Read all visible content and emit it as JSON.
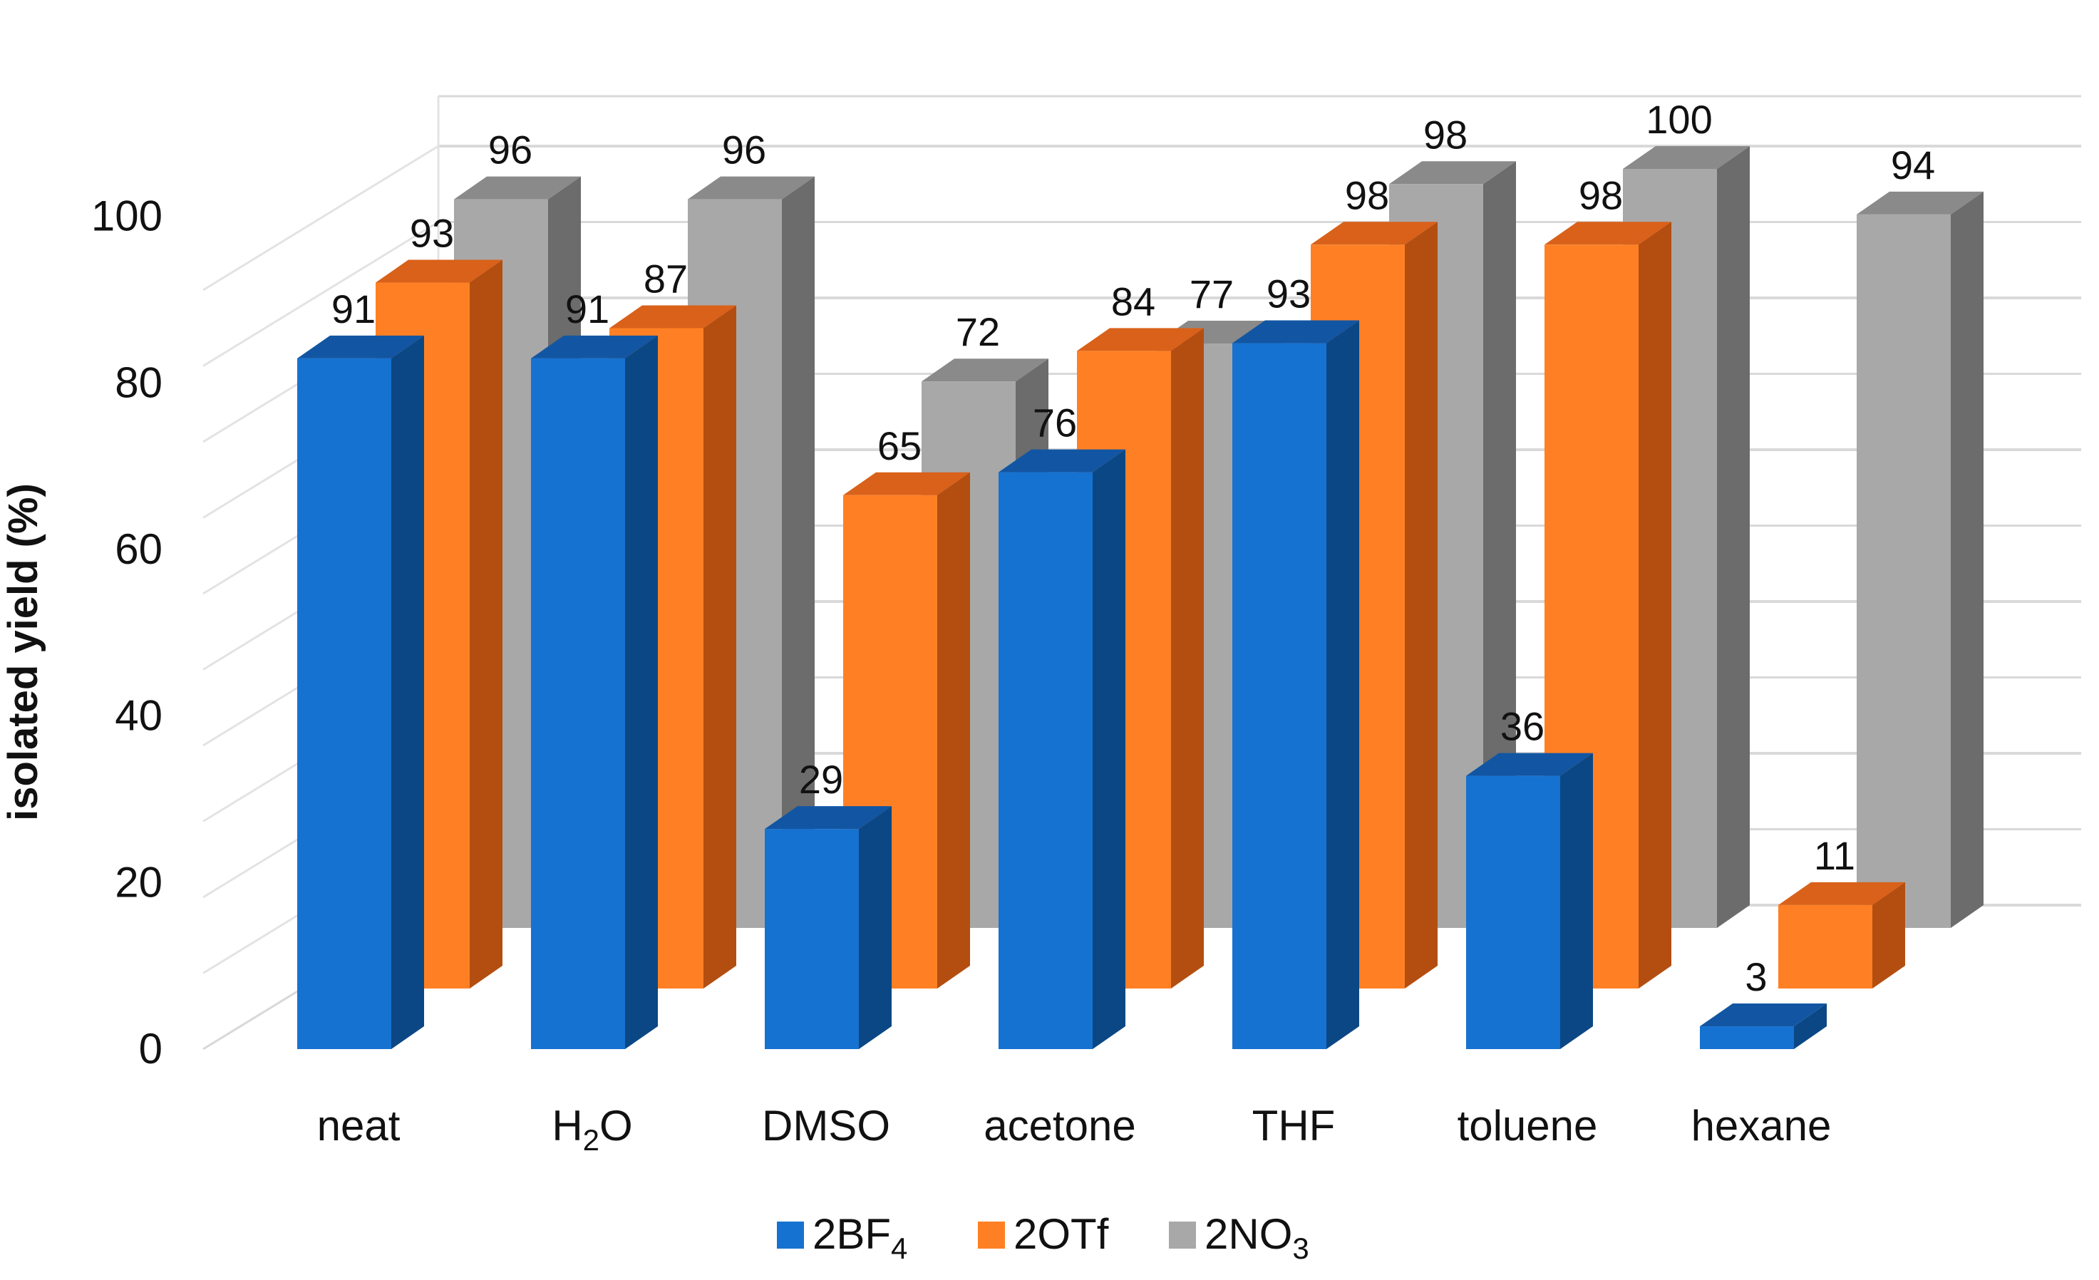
{
  "chart_data": {
    "type": "bar",
    "style": "3d-clustered-depth",
    "categories": [
      "neat",
      "H2O",
      "DMSO",
      "acetone",
      "THF",
      "toluene",
      "hexane"
    ],
    "category_labels": [
      {
        "base": "neat"
      },
      {
        "base": "H",
        "sub": "2",
        "rest": "O"
      },
      {
        "base": "DMSO"
      },
      {
        "base": "acetone"
      },
      {
        "base": "THF"
      },
      {
        "base": "toluene"
      },
      {
        "base": "hexane"
      }
    ],
    "series": [
      {
        "name": "2BF4",
        "legend": {
          "base": "2BF",
          "sub": "4",
          "rest": ""
        },
        "color": "#1672D0",
        "side_color": "#0B4784",
        "top_color": "#1256A3",
        "values": [
          91,
          91,
          29,
          76,
          93,
          36,
          3
        ]
      },
      {
        "name": "2OTf",
        "legend": {
          "base": "2OTf",
          "sub": "",
          "rest": ""
        },
        "color": "#FF8024",
        "side_color": "#B34E10",
        "top_color": "#D9611A",
        "values": [
          93,
          87,
          65,
          84,
          98,
          98,
          11
        ]
      },
      {
        "name": "2NO3",
        "legend": {
          "base": "2NO",
          "sub": "3",
          "rest": ""
        },
        "color": "#A8A8A8",
        "side_color": "#6C6C6C",
        "top_color": "#8A8A8A",
        "values": [
          96,
          96,
          72,
          77,
          98,
          100,
          94
        ]
      }
    ],
    "ylabel": "isolated yield (%)",
    "xlabel": "",
    "ylim": [
      0,
      100
    ],
    "yticks": [
      "0",
      "20",
      "40",
      "60",
      "80",
      "100"
    ],
    "grid": true,
    "legend_position": "bottom-center"
  }
}
